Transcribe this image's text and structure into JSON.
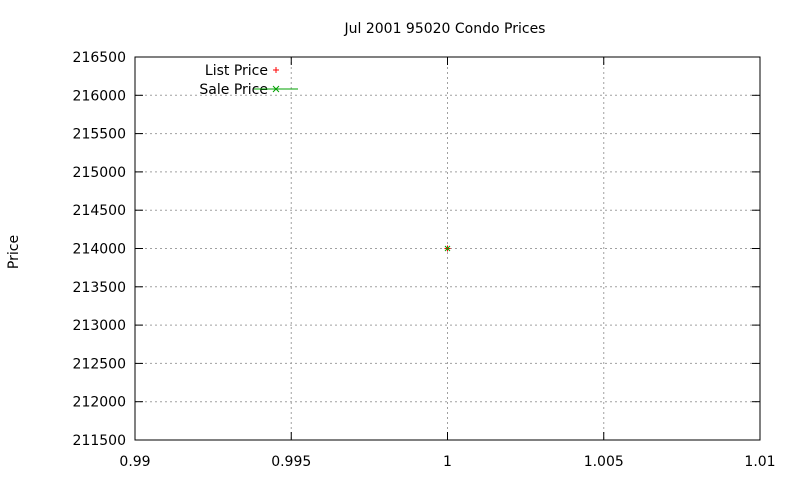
{
  "chart_data": {
    "type": "scatter",
    "title": "Jul 2001 95020 Condo Prices",
    "xlabel": "",
    "ylabel": "Price",
    "xlim": [
      0.99,
      1.01
    ],
    "ylim": [
      211500,
      216500
    ],
    "x_ticks": [
      "0.99",
      "0.995",
      "1",
      "1.005",
      "1.01"
    ],
    "y_ticks": [
      "211500",
      "212000",
      "212500",
      "213000",
      "213500",
      "214000",
      "214500",
      "215000",
      "215500",
      "216000",
      "216500"
    ],
    "grid": true,
    "legend_position": "top-left",
    "series": [
      {
        "name": "List Price",
        "marker": "plus",
        "line": false,
        "color": "#ff0000",
        "points": [
          {
            "x": 1,
            "y": 214000
          }
        ]
      },
      {
        "name": "Sale Price",
        "marker": "cross",
        "line": true,
        "color": "#00a000",
        "points": [
          {
            "x": 1,
            "y": 214000
          }
        ]
      }
    ]
  }
}
